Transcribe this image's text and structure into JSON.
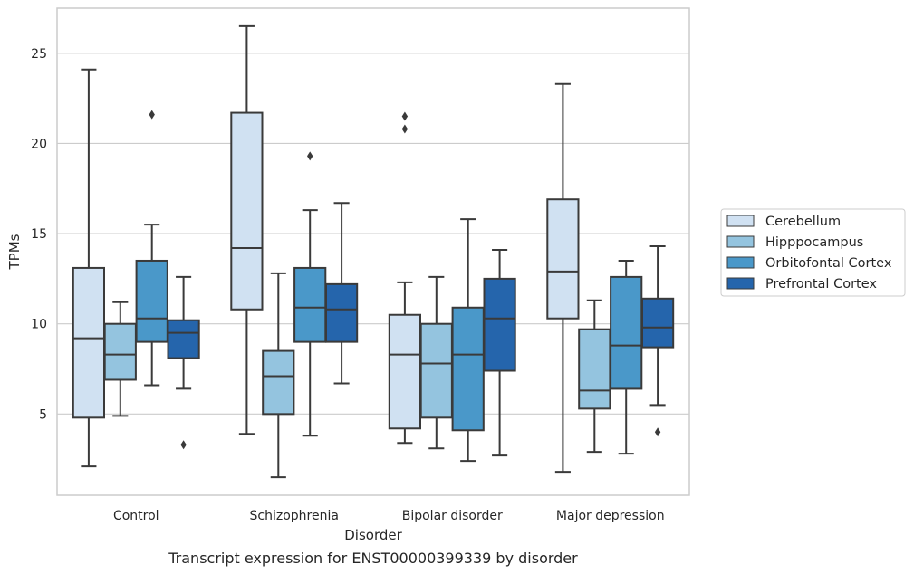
{
  "caption": "Transcript expression for ENST00000399339 by disorder",
  "chart_data": {
    "type": "box",
    "xlabel": "Disorder",
    "ylabel": "TPMs",
    "ylim": [
      0.5,
      27.5
    ],
    "yticks": [
      5,
      10,
      15,
      20,
      25
    ],
    "grid": "horizontal",
    "legend_position": "right",
    "categories": [
      "Control",
      "Schizophrenia",
      "Bipolar disorder",
      "Major depression"
    ],
    "series": [
      {
        "name": "Cerebellum",
        "color": "#d0e1f2",
        "boxes": [
          {
            "whisker_low": 2.1,
            "q1": 4.8,
            "median": 9.2,
            "q3": 13.1,
            "whisker_high": 24.1,
            "outliers": []
          },
          {
            "whisker_low": 3.9,
            "q1": 10.8,
            "median": 14.2,
            "q3": 21.7,
            "whisker_high": 26.5,
            "outliers": []
          },
          {
            "whisker_low": 3.4,
            "q1": 4.2,
            "median": 8.3,
            "q3": 10.5,
            "whisker_high": 12.3,
            "outliers": [
              20.8,
              21.5
            ]
          },
          {
            "whisker_low": 1.8,
            "q1": 10.3,
            "median": 12.9,
            "q3": 16.9,
            "whisker_high": 23.3,
            "outliers": []
          }
        ]
      },
      {
        "name": "Hipppocampus",
        "color": "#94c4df",
        "boxes": [
          {
            "whisker_low": 4.9,
            "q1": 6.9,
            "median": 8.3,
            "q3": 10.0,
            "whisker_high": 11.2,
            "outliers": []
          },
          {
            "whisker_low": 1.5,
            "q1": 5.0,
            "median": 7.1,
            "q3": 8.5,
            "whisker_high": 12.8,
            "outliers": []
          },
          {
            "whisker_low": 3.1,
            "q1": 4.8,
            "median": 7.8,
            "q3": 10.0,
            "whisker_high": 12.6,
            "outliers": []
          },
          {
            "whisker_low": 2.9,
            "q1": 5.3,
            "median": 6.3,
            "q3": 9.7,
            "whisker_high": 11.3,
            "outliers": []
          }
        ]
      },
      {
        "name": "Orbitofontal Cortex",
        "color": "#4a98c9",
        "boxes": [
          {
            "whisker_low": 6.6,
            "q1": 9.0,
            "median": 10.3,
            "q3": 13.5,
            "whisker_high": 15.5,
            "outliers": [
              21.6
            ]
          },
          {
            "whisker_low": 3.8,
            "q1": 9.0,
            "median": 10.9,
            "q3": 13.1,
            "whisker_high": 16.3,
            "outliers": [
              19.3
            ]
          },
          {
            "whisker_low": 2.4,
            "q1": 4.1,
            "median": 8.3,
            "q3": 10.9,
            "whisker_high": 15.8,
            "outliers": []
          },
          {
            "whisker_low": 2.8,
            "q1": 6.4,
            "median": 8.8,
            "q3": 12.6,
            "whisker_high": 13.5,
            "outliers": []
          }
        ]
      },
      {
        "name": "Prefrontal Cortex",
        "color": "#2565ac",
        "boxes": [
          {
            "whisker_low": 6.4,
            "q1": 8.1,
            "median": 9.5,
            "q3": 10.2,
            "whisker_high": 12.6,
            "outliers": [
              3.3
            ]
          },
          {
            "whisker_low": 6.7,
            "q1": 9.0,
            "median": 10.8,
            "q3": 12.2,
            "whisker_high": 16.7,
            "outliers": []
          },
          {
            "whisker_low": 2.7,
            "q1": 7.4,
            "median": 10.3,
            "q3": 12.5,
            "whisker_high": 14.1,
            "outliers": []
          },
          {
            "whisker_low": 5.5,
            "q1": 8.7,
            "median": 9.8,
            "q3": 11.4,
            "whisker_high": 14.3,
            "outliers": [
              4.0
            ]
          }
        ]
      }
    ]
  }
}
